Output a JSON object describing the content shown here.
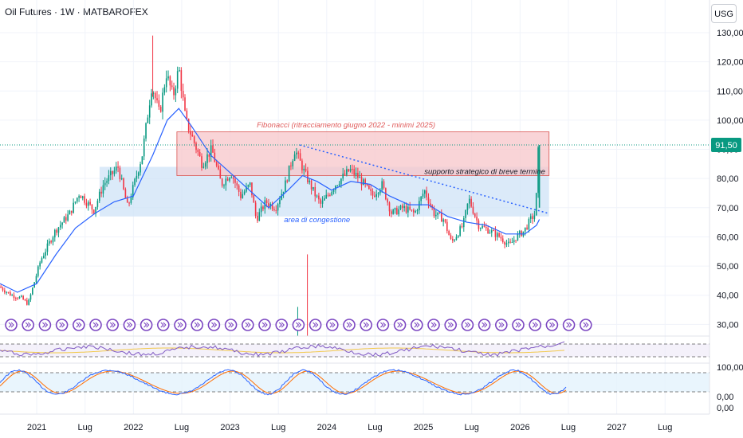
{
  "header": {
    "title": "Oil Futures · 1W · MATBAROFEX",
    "currency": "USG"
  },
  "colors": {
    "up": "#089981",
    "down": "#f23645",
    "ma": "#2962ff",
    "fib_zone": "#f7c6c9",
    "congestion_zone": "#cfe3f7",
    "rsi_line": "#7e57c2",
    "rsi_signal": "#f2c94c",
    "stoch_k": "#2962ff",
    "stoch_d": "#ff6d00",
    "price_label": "#089981",
    "event_icon": "#7b46c1"
  },
  "price_badge": "91,50",
  "annotations": {
    "fib": "Fibonacci (ritracciamento giugno 2022 - minimi 2025)",
    "support": "supporto strategico di breve termine",
    "congestion": "area di congestione"
  },
  "stoch_labels": [
    "100,00",
    "0,00"
  ],
  "chart_data": {
    "type": "candlestick",
    "title": "Oil Futures · 1W · MATBAROFEX",
    "x_tick_labels": [
      "2021",
      "Lug",
      "2022",
      "Lug",
      "2023",
      "Lug",
      "2024",
      "Lug",
      "2025",
      "Lug",
      "2026",
      "Lug",
      "2027",
      "Lug"
    ],
    "x_ticks_year": [
      2021.0,
      2021.5,
      2022.0,
      2022.5,
      2023.0,
      2023.5,
      2024.0,
      2024.5,
      2025.0,
      2025.5,
      2026.0,
      2026.5,
      2027.0,
      2027.5
    ],
    "y_ticks": [
      30,
      40,
      50,
      60,
      70,
      80,
      90,
      100,
      110,
      120,
      130
    ],
    "y_tick_labels": [
      "30,00",
      "40,00",
      "50,00",
      "60,00",
      "70,00",
      "80,00",
      "90,00",
      "100,00",
      "110,00",
      "120,00",
      "130,00"
    ],
    "ylim": [
      26,
      133
    ],
    "last_price": 91.5,
    "close_path": [
      [
        2020.62,
        43
      ],
      [
        2020.75,
        40
      ],
      [
        2020.85,
        39
      ],
      [
        2020.92,
        37
      ],
      [
        2021.05,
        52
      ],
      [
        2021.2,
        62
      ],
      [
        2021.35,
        68
      ],
      [
        2021.45,
        75
      ],
      [
        2021.6,
        69
      ],
      [
        2021.7,
        78
      ],
      [
        2021.85,
        84
      ],
      [
        2021.95,
        70
      ],
      [
        2022.1,
        88
      ],
      [
        2022.2,
        112
      ],
      [
        2022.28,
        102
      ],
      [
        2022.35,
        116
      ],
      [
        2022.42,
        108
      ],
      [
        2022.48,
        118
      ],
      [
        2022.55,
        100
      ],
      [
        2022.62,
        94
      ],
      [
        2022.72,
        85
      ],
      [
        2022.82,
        90
      ],
      [
        2022.92,
        78
      ],
      [
        2023.02,
        82
      ],
      [
        2023.12,
        74
      ],
      [
        2023.22,
        78
      ],
      [
        2023.28,
        66
      ],
      [
        2023.38,
        72
      ],
      [
        2023.48,
        70
      ],
      [
        2023.58,
        78
      ],
      [
        2023.68,
        90
      ],
      [
        2023.78,
        82
      ],
      [
        2023.88,
        75
      ],
      [
        2023.95,
        71
      ],
      [
        2024.1,
        78
      ],
      [
        2024.25,
        83
      ],
      [
        2024.35,
        80
      ],
      [
        2024.48,
        74
      ],
      [
        2024.58,
        78
      ],
      [
        2024.68,
        68
      ],
      [
        2024.8,
        70
      ],
      [
        2024.92,
        68
      ],
      [
        2025.02,
        76
      ],
      [
        2025.12,
        68
      ],
      [
        2025.22,
        66
      ],
      [
        2025.3,
        58
      ],
      [
        2025.42,
        64
      ],
      [
        2025.48,
        73
      ],
      [
        2025.58,
        64
      ],
      [
        2025.7,
        62
      ],
      [
        2025.8,
        60
      ],
      [
        2025.9,
        57
      ],
      [
        2025.97,
        60
      ],
      [
        2026.05,
        62
      ],
      [
        2026.12,
        66
      ],
      [
        2026.17,
        68
      ],
      [
        2026.2,
        91.5
      ]
    ],
    "moving_average": [
      [
        2020.62,
        44
      ],
      [
        2020.8,
        41
      ],
      [
        2021.0,
        44
      ],
      [
        2021.2,
        54
      ],
      [
        2021.4,
        63
      ],
      [
        2021.6,
        68
      ],
      [
        2021.8,
        72
      ],
      [
        2022.0,
        74
      ],
      [
        2022.2,
        88
      ],
      [
        2022.35,
        100
      ],
      [
        2022.47,
        104
      ],
      [
        2022.6,
        98
      ],
      [
        2022.8,
        88
      ],
      [
        2023.0,
        82
      ],
      [
        2023.2,
        76
      ],
      [
        2023.4,
        70
      ],
      [
        2023.6,
        76
      ],
      [
        2023.75,
        81
      ],
      [
        2023.9,
        79
      ],
      [
        2024.05,
        76
      ],
      [
        2024.25,
        79
      ],
      [
        2024.45,
        78
      ],
      [
        2024.65,
        74
      ],
      [
        2024.85,
        71
      ],
      [
        2025.05,
        71
      ],
      [
        2025.25,
        67
      ],
      [
        2025.45,
        65
      ],
      [
        2025.65,
        64
      ],
      [
        2025.85,
        61
      ],
      [
        2026.05,
        61
      ],
      [
        2026.17,
        64
      ],
      [
        2026.2,
        66
      ]
    ],
    "fib_zone": {
      "x0": 2022.45,
      "x1": 2026.3,
      "y0": 81,
      "y1": 96
    },
    "congestion_zone": {
      "x0": 2021.65,
      "x1": 2026.3,
      "y0": 67,
      "y1": 84
    },
    "trendline": {
      "x0": 2023.72,
      "y0": 91.5,
      "x1": 2026.3,
      "y1": 68
    },
    "rsi_levels": [
      70,
      30
    ],
    "stoch_levels": [
      80,
      20
    ]
  }
}
